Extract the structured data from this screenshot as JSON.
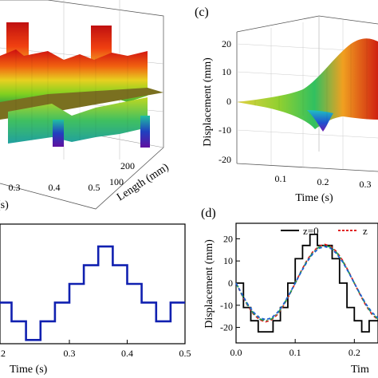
{
  "panels": {
    "b_surface": {
      "x_ticks": [
        "0.3",
        "0.4",
        "0.5"
      ],
      "x_label_fragment": "(s)",
      "y_ticks": [
        "100",
        "200"
      ],
      "y_label": "Length (mm)"
    },
    "c_surface": {
      "letter": "(c)",
      "z_label": "Displacement (mm)",
      "z_ticks": [
        "20",
        "10",
        "0",
        "-10",
        "-20"
      ],
      "x_ticks": [
        "0.1",
        "0.2",
        "0.3"
      ],
      "x_label": "Time (s)"
    },
    "d": {
      "letter": "(d)",
      "y_label": "Displacement (mm)",
      "x_label_fragment": "Tim",
      "legend": [
        "z=0",
        "z"
      ]
    },
    "bottom_left": {
      "x_label_fragment": "Time (s)",
      "first_tick_fragment": ".2"
    }
  },
  "colors": {
    "line_blue": "#1020b0",
    "solid_black": "#000000",
    "dashed_red": "#e02020",
    "dashdot_green": "#20a050",
    "dashed_blue": "#2060d0"
  },
  "chart_data": [
    {
      "type": "line",
      "panel": "bottom-left",
      "x_ticks": [
        "0.3",
        "0.4",
        "0.5"
      ],
      "xlim": [
        0.18,
        0.5
      ],
      "ylim": [
        -3.2,
        3.2
      ],
      "series": [
        {
          "color": "#1020b0",
          "x": [
            0.18,
            0.2,
            0.2,
            0.225,
            0.225,
            0.25,
            0.25,
            0.275,
            0.275,
            0.3,
            0.3,
            0.325,
            0.325,
            0.35,
            0.35,
            0.375,
            0.375,
            0.4,
            0.4,
            0.425,
            0.425,
            0.45,
            0.45,
            0.475,
            0.475,
            0.5
          ],
          "y": [
            -1,
            -1,
            -2,
            -2,
            -3,
            -3,
            -2,
            -2,
            -1,
            -1,
            0,
            0,
            1,
            1,
            2,
            2,
            1,
            1,
            0,
            0,
            -1,
            -1,
            -2,
            -2,
            -1,
            -1
          ]
        }
      ]
    },
    {
      "type": "line",
      "panel": "(d)",
      "x_ticks": [
        "0.0",
        "0.1",
        "0.2"
      ],
      "y_ticks": [
        "20",
        "10",
        "0",
        "-10",
        "-20"
      ],
      "xlim": [
        0,
        0.24
      ],
      "ylim": [
        -27,
        27
      ],
      "series": [
        {
          "name": "z=0",
          "color": "#000000",
          "style": "solid",
          "x": [
            0,
            0.0125,
            0.0125,
            0.025,
            0.025,
            0.0375,
            0.0375,
            0.0625,
            0.0625,
            0.075,
            0.075,
            0.0875,
            0.0875,
            0.1,
            0.1,
            0.1125,
            0.1125,
            0.125,
            0.125,
            0.1375,
            0.1375,
            0.1625,
            0.1625,
            0.175,
            0.175,
            0.1875,
            0.1875,
            0.2,
            0.2,
            0.2125,
            0.2125,
            0.225,
            0.225,
            0.24
          ],
          "y": [
            0,
            0,
            -11,
            -11,
            -17,
            -17,
            -22,
            -22,
            -17,
            -17,
            -11,
            -11,
            0,
            0,
            11,
            11,
            17,
            17,
            22,
            22,
            17,
            17,
            11,
            11,
            0,
            0,
            -11,
            -11,
            -17,
            -17,
            -22,
            -22,
            -17,
            -17
          ]
        },
        {
          "name": "z",
          "color": "#e02020",
          "style": "dashed",
          "x": [
            0,
            0.01,
            0.02,
            0.03,
            0.04,
            0.05,
            0.06,
            0.07,
            0.08,
            0.09,
            0.1,
            0.11,
            0.12,
            0.13,
            0.14,
            0.15,
            0.16,
            0.17,
            0.18,
            0.19,
            0.2,
            0.21,
            0.22,
            0.23,
            0.24
          ],
          "y": [
            0,
            -5.4,
            -10.3,
            -14.2,
            -16.6,
            -17.5,
            -16.6,
            -14.2,
            -10.3,
            -5.4,
            0,
            5.4,
            10.3,
            14.2,
            16.6,
            17.5,
            16.6,
            14.2,
            10.3,
            5.4,
            0,
            -5.4,
            -10.3,
            -14.2,
            -16.6
          ]
        },
        {
          "color": "#20a050",
          "style": "dashdot",
          "x": [
            0,
            0.01,
            0.02,
            0.03,
            0.04,
            0.05,
            0.06,
            0.07,
            0.08,
            0.09,
            0.1,
            0.11,
            0.12,
            0.13,
            0.14,
            0.15,
            0.16,
            0.17,
            0.18,
            0.19,
            0.2,
            0.21,
            0.22,
            0.23,
            0.24
          ],
          "y": [
            0,
            -5.2,
            -10.0,
            -13.8,
            -16.2,
            -17.0,
            -16.2,
            -13.8,
            -10.0,
            -5.2,
            0,
            5.2,
            10.0,
            13.8,
            16.2,
            17.0,
            16.2,
            13.8,
            10.0,
            5.2,
            0,
            -5.2,
            -10.0,
            -13.8,
            -16.2
          ]
        },
        {
          "color": "#2060d0",
          "style": "dashed",
          "x": [
            0,
            0.01,
            0.02,
            0.03,
            0.04,
            0.05,
            0.06,
            0.07,
            0.08,
            0.09,
            0.1,
            0.11,
            0.12,
            0.13,
            0.14,
            0.15,
            0.16,
            0.17,
            0.18,
            0.19,
            0.2,
            0.21,
            0.22,
            0.23,
            0.24
          ],
          "y": [
            0,
            -5.0,
            -9.6,
            -13.3,
            -15.7,
            -16.5,
            -15.7,
            -13.3,
            -9.6,
            -5.0,
            0,
            5.0,
            9.6,
            13.3,
            15.7,
            16.5,
            15.7,
            13.3,
            9.6,
            5.0,
            0,
            -5.0,
            -9.6,
            -13.3,
            -15.7
          ]
        }
      ]
    }
  ]
}
